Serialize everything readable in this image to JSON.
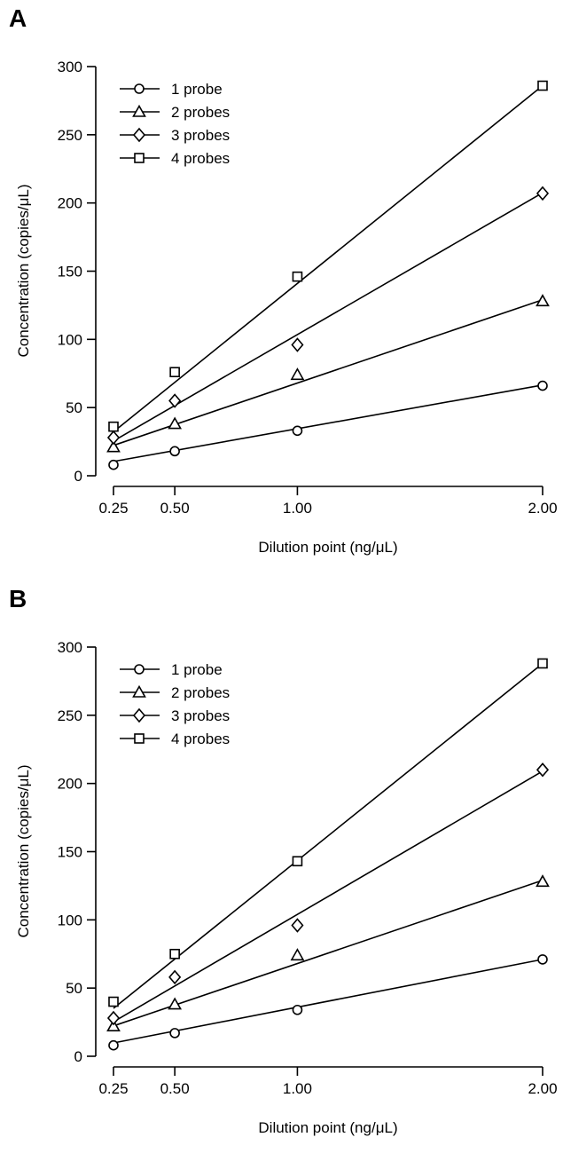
{
  "chart_data": [
    {
      "panel_label": "A",
      "type": "scatter",
      "xlabel": "Dilution point (ng/μL)",
      "ylabel": "Concentration (copies/μL)",
      "xlim": [
        0.2,
        2.07
      ],
      "ylim": [
        -10,
        310
      ],
      "x_ticks": [
        0.25,
        0.5,
        1.0,
        2.0
      ],
      "x_tick_labels": [
        "0.25",
        "0.50",
        "1.00",
        "2.00"
      ],
      "y_ticks": [
        0,
        50,
        100,
        150,
        200,
        250,
        300
      ],
      "y_tick_labels": [
        "0",
        "50",
        "100",
        "150",
        "200",
        "250",
        "300"
      ],
      "legend_position": "top-left",
      "grid": false,
      "series": [
        {
          "name": "1 probe",
          "marker": "circle",
          "x": [
            0.25,
            0.5,
            1.0,
            2.0
          ],
          "y": [
            8,
            18,
            33,
            66
          ],
          "fit": [
            2.5,
            32.0
          ]
        },
        {
          "name": "2 probes",
          "marker": "triangle",
          "x": [
            0.25,
            0.5,
            1.0,
            2.0
          ],
          "y": [
            21,
            38,
            74,
            128
          ],
          "fit": [
            7.0,
            61.0
          ]
        },
        {
          "name": "3 probes",
          "marker": "diamond",
          "x": [
            0.25,
            0.5,
            1.0,
            2.0
          ],
          "y": [
            28,
            55,
            96,
            207
          ],
          "fit": [
            -0.5,
            104.0
          ]
        },
        {
          "name": "4 probes",
          "marker": "square",
          "x": [
            0.25,
            0.5,
            1.0,
            2.0
          ],
          "y": [
            36,
            76,
            146,
            286
          ],
          "fit": [
            -4.0,
            145.0
          ]
        }
      ]
    },
    {
      "panel_label": "B",
      "type": "scatter",
      "xlabel": "Dilution point (ng/μL)",
      "ylabel": "Concentration (copies/μL)",
      "xlim": [
        0.2,
        2.07
      ],
      "ylim": [
        -10,
        310
      ],
      "x_ticks": [
        0.25,
        0.5,
        1.0,
        2.0
      ],
      "x_tick_labels": [
        "0.25",
        "0.50",
        "1.00",
        "2.00"
      ],
      "y_ticks": [
        0,
        50,
        100,
        150,
        200,
        250,
        300
      ],
      "y_tick_labels": [
        "0",
        "50",
        "100",
        "150",
        "200",
        "250",
        "300"
      ],
      "legend_position": "top-left",
      "grid": false,
      "series": [
        {
          "name": "1 probe",
          "marker": "circle",
          "x": [
            0.25,
            0.5,
            1.0,
            2.0
          ],
          "y": [
            8,
            17,
            34,
            71
          ],
          "fit": [
            1.0,
            35.0
          ]
        },
        {
          "name": "2 probes",
          "marker": "triangle",
          "x": [
            0.25,
            0.5,
            1.0,
            2.0
          ],
          "y": [
            22,
            38,
            74,
            128
          ],
          "fit": [
            7.0,
            61.0
          ]
        },
        {
          "name": "3 probes",
          "marker": "diamond",
          "x": [
            0.25,
            0.5,
            1.0,
            2.0
          ],
          "y": [
            28,
            58,
            96,
            210
          ],
          "fit": [
            -1.0,
            105.0
          ]
        },
        {
          "name": "4 probes",
          "marker": "square",
          "x": [
            0.25,
            0.5,
            1.0,
            2.0
          ],
          "y": [
            40,
            75,
            143,
            288
          ],
          "fit": [
            -1.0,
            144.5
          ]
        }
      ]
    }
  ]
}
